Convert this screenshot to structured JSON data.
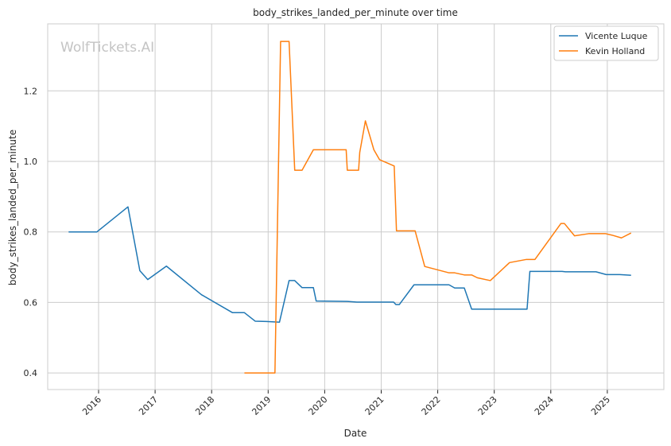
{
  "chart_data": {
    "type": "line",
    "title": "body_strikes_landed_per_minute over time",
    "xlabel": "Date",
    "ylabel": "body_strikes_landed_per_minute",
    "watermark": "WolfTickets.AI",
    "x_ticks": [
      "2016",
      "2017",
      "2018",
      "2019",
      "2020",
      "2021",
      "2022",
      "2023",
      "2024",
      "2025"
    ],
    "y_ticks": [
      "0.4",
      "0.6",
      "0.8",
      "1.0",
      "1.2"
    ],
    "xlim": [
      2015.1,
      2026.0
    ],
    "ylim": [
      0.353,
      1.39
    ],
    "grid": true,
    "legend_position": "top-right",
    "series": [
      {
        "name": "Vicente Luque",
        "color": "#1f77b4",
        "points": [
          [
            2015.47,
            0.8
          ],
          [
            2015.97,
            0.8
          ],
          [
            2016.52,
            0.871
          ],
          [
            2016.73,
            0.69
          ],
          [
            2016.87,
            0.665
          ],
          [
            2017.2,
            0.703
          ],
          [
            2017.82,
            0.622
          ],
          [
            2018.37,
            0.571
          ],
          [
            2018.58,
            0.571
          ],
          [
            2018.77,
            0.547
          ],
          [
            2018.97,
            0.546
          ],
          [
            2019.2,
            0.544
          ],
          [
            2019.37,
            0.662
          ],
          [
            2019.47,
            0.662
          ],
          [
            2019.6,
            0.642
          ],
          [
            2019.8,
            0.642
          ],
          [
            2019.85,
            0.604
          ],
          [
            2020.4,
            0.603
          ],
          [
            2020.57,
            0.601
          ],
          [
            2021.22,
            0.601
          ],
          [
            2021.26,
            0.594
          ],
          [
            2021.32,
            0.594
          ],
          [
            2021.58,
            0.65
          ],
          [
            2022.2,
            0.65
          ],
          [
            2022.3,
            0.641
          ],
          [
            2022.47,
            0.641
          ],
          [
            2022.6,
            0.581
          ],
          [
            2023.58,
            0.581
          ],
          [
            2023.63,
            0.688
          ],
          [
            2024.2,
            0.688
          ],
          [
            2024.26,
            0.687
          ],
          [
            2024.8,
            0.687
          ],
          [
            2024.98,
            0.679
          ],
          [
            2025.22,
            0.679
          ],
          [
            2025.42,
            0.677
          ]
        ]
      },
      {
        "name": "Kevin Holland",
        "color": "#ff7f0e",
        "points": [
          [
            2018.58,
            0.4
          ],
          [
            2019.12,
            0.4
          ],
          [
            2019.22,
            1.34
          ],
          [
            2019.37,
            1.34
          ],
          [
            2019.47,
            0.975
          ],
          [
            2019.6,
            0.975
          ],
          [
            2019.8,
            1.033
          ],
          [
            2020.38,
            1.033
          ],
          [
            2020.4,
            0.975
          ],
          [
            2020.6,
            0.975
          ],
          [
            2020.62,
            1.025
          ],
          [
            2020.72,
            1.115
          ],
          [
            2020.87,
            1.033
          ],
          [
            2020.97,
            1.005
          ],
          [
            2021.23,
            0.987
          ],
          [
            2021.27,
            0.803
          ],
          [
            2021.6,
            0.803
          ],
          [
            2021.77,
            0.702
          ],
          [
            2022.2,
            0.684
          ],
          [
            2022.3,
            0.684
          ],
          [
            2022.47,
            0.678
          ],
          [
            2022.6,
            0.678
          ],
          [
            2022.7,
            0.67
          ],
          [
            2022.93,
            0.662
          ],
          [
            2023.27,
            0.713
          ],
          [
            2023.57,
            0.722
          ],
          [
            2023.72,
            0.722
          ],
          [
            2024.18,
            0.824
          ],
          [
            2024.24,
            0.824
          ],
          [
            2024.42,
            0.789
          ],
          [
            2024.67,
            0.795
          ],
          [
            2024.97,
            0.795
          ],
          [
            2025.08,
            0.791
          ],
          [
            2025.25,
            0.783
          ],
          [
            2025.42,
            0.797
          ]
        ]
      }
    ]
  }
}
